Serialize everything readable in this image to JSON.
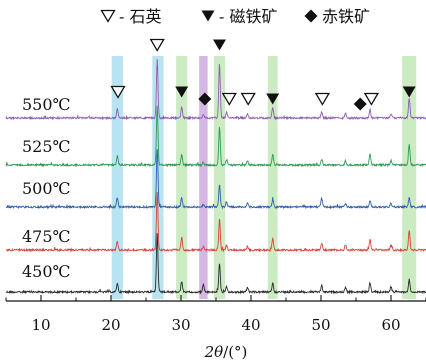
{
  "chart_data": {
    "type": "line",
    "xlabel": "2θ/(°)",
    "xlim": [
      5,
      65
    ],
    "x_ticks": [
      10,
      20,
      30,
      40,
      50,
      60
    ],
    "legend": [
      {
        "marker": "open-triangle",
        "label": "石英"
      },
      {
        "marker": "filled-triangle",
        "label": "磁铁矿"
      },
      {
        "marker": "filled-diamond",
        "label": "赤铁矿"
      }
    ],
    "legend_separator": "-",
    "series": [
      {
        "name": "450℃",
        "color": "#2b2b2b",
        "peaks": [
          [
            20.9,
            10
          ],
          [
            26.6,
            65
          ],
          [
            30.1,
            12
          ],
          [
            33.2,
            8
          ],
          [
            35.5,
            32
          ],
          [
            36.5,
            6
          ],
          [
            39.5,
            5
          ],
          [
            43.1,
            10
          ],
          [
            50.1,
            7
          ],
          [
            53.5,
            5
          ],
          [
            57.0,
            10
          ],
          [
            60.0,
            6
          ],
          [
            62.6,
            14
          ]
        ]
      },
      {
        "name": "475℃",
        "color": "#d8453b",
        "peaks": [
          [
            20.9,
            10
          ],
          [
            26.6,
            65
          ],
          [
            30.1,
            14
          ],
          [
            33.2,
            4
          ],
          [
            35.5,
            34
          ],
          [
            36.5,
            5
          ],
          [
            39.5,
            4
          ],
          [
            43.1,
            13
          ],
          [
            50.1,
            7
          ],
          [
            53.5,
            6
          ],
          [
            57.0,
            12
          ],
          [
            60.0,
            5
          ],
          [
            62.6,
            22
          ]
        ]
      },
      {
        "name": "500℃",
        "color": "#2f5fa8",
        "peaks": [
          [
            20.9,
            10
          ],
          [
            26.6,
            65
          ],
          [
            30.1,
            10
          ],
          [
            33.2,
            3
          ],
          [
            35.5,
            25
          ],
          [
            36.5,
            6
          ],
          [
            39.5,
            5
          ],
          [
            43.1,
            8
          ],
          [
            50.1,
            10
          ],
          [
            53.5,
            4
          ],
          [
            57.0,
            7
          ],
          [
            60.0,
            4
          ],
          [
            62.6,
            10
          ]
        ]
      },
      {
        "name": "525℃",
        "color": "#2f9a57",
        "peaks": [
          [
            20.9,
            10
          ],
          [
            26.6,
            65
          ],
          [
            30.1,
            12
          ],
          [
            33.2,
            3
          ],
          [
            35.5,
            42
          ],
          [
            36.5,
            6
          ],
          [
            39.5,
            5
          ],
          [
            43.1,
            12
          ],
          [
            50.1,
            7
          ],
          [
            53.5,
            5
          ],
          [
            57.0,
            12
          ],
          [
            60.0,
            5
          ],
          [
            62.6,
            24
          ]
        ]
      },
      {
        "name": "550℃",
        "color": "#8e5fb0",
        "peaks": [
          [
            20.9,
            10
          ],
          [
            26.6,
            65
          ],
          [
            30.1,
            12
          ],
          [
            33.2,
            4
          ],
          [
            35.5,
            60
          ],
          [
            36.5,
            6
          ],
          [
            39.5,
            5
          ],
          [
            43.1,
            12
          ],
          [
            50.1,
            7
          ],
          [
            53.5,
            5
          ],
          [
            57.0,
            9
          ],
          [
            60.0,
            5
          ],
          [
            62.6,
            22
          ]
        ]
      }
    ],
    "bands": [
      {
        "x": [
          20.1,
          21.7
        ],
        "color": "#5fc4dd"
      },
      {
        "x": [
          25.9,
          27.5
        ],
        "color": "#5fc4dd"
      },
      {
        "x": [
          29.3,
          30.9
        ],
        "color": "#8fd27a"
      },
      {
        "x": [
          32.6,
          33.8
        ],
        "color": "#a05fbf"
      },
      {
        "x": [
          34.7,
          36.3
        ],
        "color": "#8fd27a"
      },
      {
        "x": [
          42.4,
          43.8
        ],
        "color": "#8fd27a"
      },
      {
        "x": [
          61.6,
          63.6
        ],
        "color": "#8fd27a"
      }
    ],
    "peak_markers": [
      {
        "x": 21.0,
        "level": 0,
        "type": "open-triangle"
      },
      {
        "x": 26.6,
        "level": 2,
        "type": "open-triangle"
      },
      {
        "x": 30.1,
        "level": 0,
        "type": "filled-triangle"
      },
      {
        "x": 33.4,
        "level": -1,
        "type": "filled-diamond"
      },
      {
        "x": 35.5,
        "level": 2,
        "type": "filled-triangle"
      },
      {
        "x": 36.9,
        "level": -1,
        "type": "open-triangle"
      },
      {
        "x": 39.6,
        "level": -1,
        "type": "open-triangle"
      },
      {
        "x": 43.1,
        "level": -1,
        "type": "filled-triangle"
      },
      {
        "x": 50.2,
        "level": -1,
        "type": "open-triangle"
      },
      {
        "x": 55.6,
        "level": -2,
        "type": "filled-diamond"
      },
      {
        "x": 57.2,
        "level": -1,
        "type": "open-triangle"
      },
      {
        "x": 62.6,
        "level": 0,
        "type": "filled-triangle"
      }
    ]
  }
}
